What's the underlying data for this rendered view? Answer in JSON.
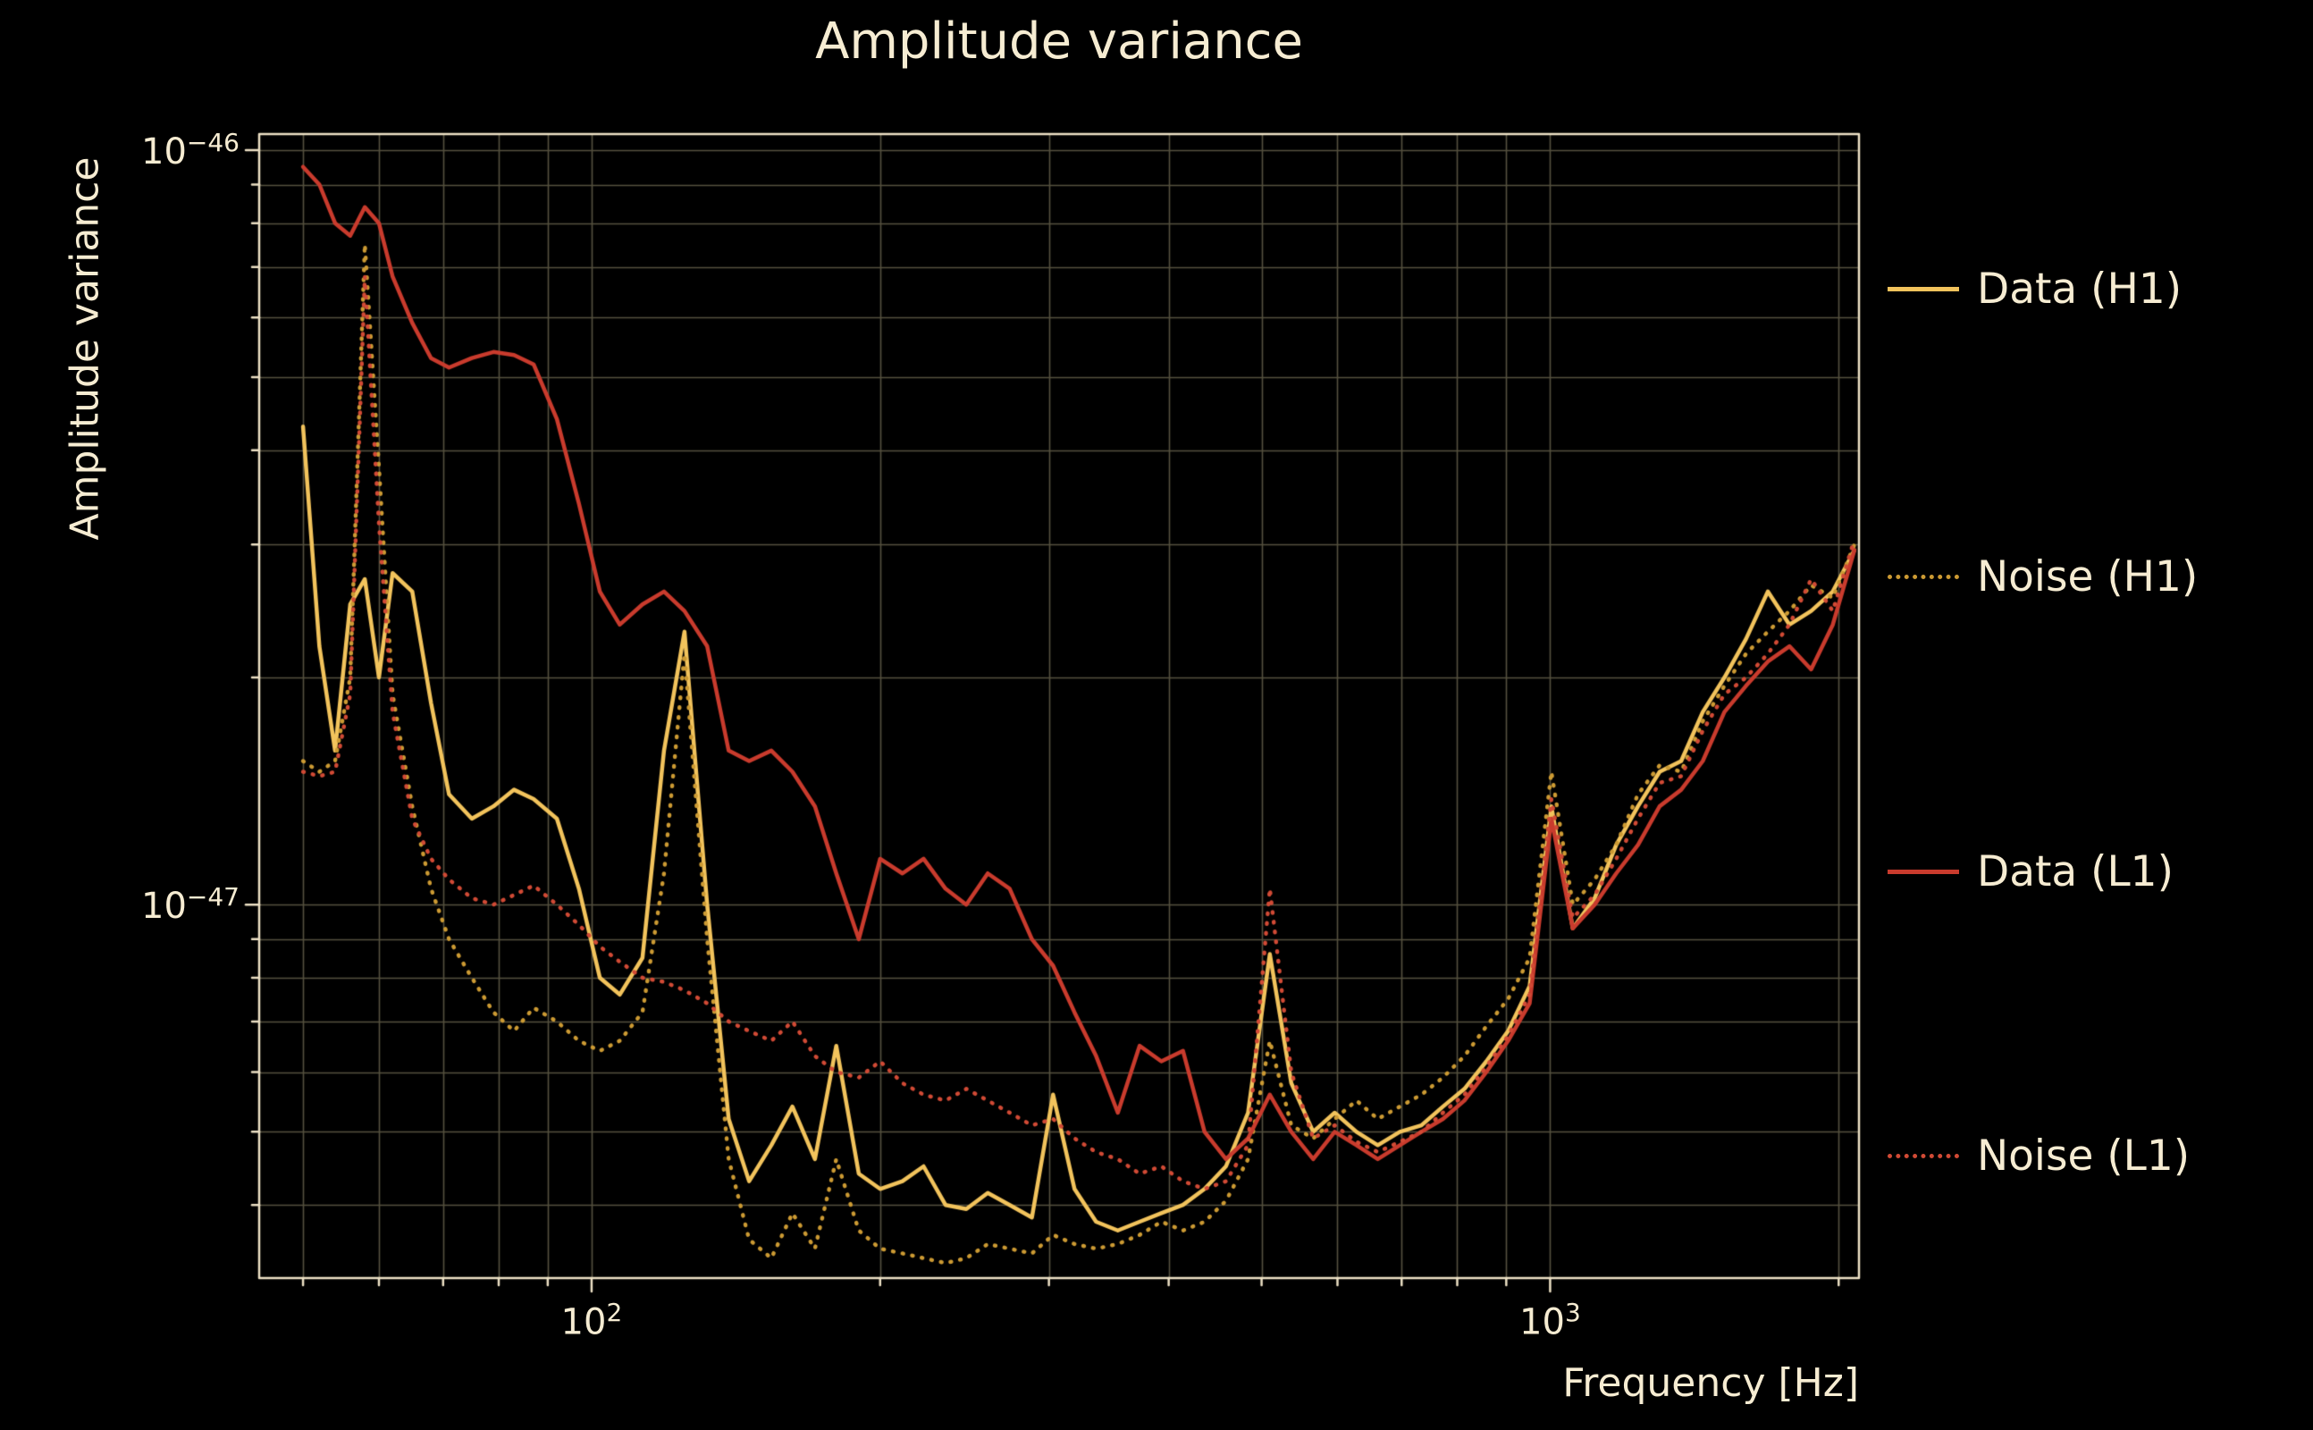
{
  "colors": {
    "background": "#000000",
    "text": "#f6ecd2",
    "grid": "#55513f",
    "axis": "#ece0c4"
  },
  "chart_data": {
    "type": "line",
    "title": "Amplitude variance",
    "xlabel": "Frequency [Hz]",
    "ylabel": "Amplitude variance",
    "xscale": "log",
    "yscale": "log",
    "grid": true,
    "legend_position": "right-outside",
    "xlim": [
      45,
      2100
    ],
    "ylim": [
      3.2e-48,
      1.05e-46
    ],
    "y_unit_scale": 1e-48,
    "x": [
      50,
      52,
      54,
      56,
      58,
      60,
      62,
      65,
      68,
      71,
      75,
      79,
      83,
      87,
      92,
      97,
      102,
      107,
      113,
      119,
      125,
      132,
      139,
      146,
      154,
      162,
      171,
      180,
      190,
      200,
      211,
      222,
      234,
      246,
      259,
      273,
      288,
      303,
      319,
      336,
      354,
      373,
      393,
      414,
      436,
      459,
      484,
      510,
      537,
      566,
      596,
      628,
      661,
      697,
      734,
      773,
      814,
      858,
      904,
      952,
      1003,
      1056,
      1113,
      1172,
      1235,
      1301,
      1370,
      1443,
      1520,
      1601,
      1687,
      1777,
      1872,
      1972,
      2077
    ],
    "series": [
      {
        "name": "Data (H1)",
        "color": "#f2c35c",
        "dash": "solid",
        "values": [
          43,
          22,
          16,
          25,
          27,
          20,
          27.5,
          26,
          18.5,
          14,
          13,
          13.5,
          14.2,
          13.8,
          13,
          10.5,
          8.0,
          7.6,
          8.5,
          16,
          23,
          10,
          5.2,
          4.3,
          4.8,
          5.4,
          4.6,
          6.5,
          4.4,
          4.2,
          4.3,
          4.5,
          4.0,
          3.95,
          4.15,
          4.0,
          3.85,
          5.6,
          4.2,
          3.8,
          3.7,
          3.8,
          3.9,
          4.0,
          4.2,
          4.5,
          5.3,
          8.6,
          5.8,
          5.0,
          5.3,
          5.0,
          4.8,
          5.0,
          5.1,
          5.4,
          5.7,
          6.2,
          6.8,
          7.8,
          13.5,
          9.3,
          10.2,
          12,
          13.5,
          15,
          15.5,
          18,
          20,
          22.5,
          26,
          23.5,
          24.5,
          26,
          29.5
        ]
      },
      {
        "name": "Noise (H1)",
        "color": "#cc9a33",
        "dash": "dotted",
        "values": [
          15.5,
          15,
          15.5,
          20,
          75,
          38,
          19,
          13.5,
          10.5,
          9,
          8,
          7.2,
          6.8,
          7.3,
          7,
          6.6,
          6.4,
          6.6,
          7.2,
          11,
          21.5,
          9,
          4.6,
          3.6,
          3.4,
          3.9,
          3.5,
          4.6,
          3.7,
          3.5,
          3.45,
          3.4,
          3.35,
          3.4,
          3.55,
          3.5,
          3.45,
          3.65,
          3.55,
          3.5,
          3.55,
          3.65,
          3.8,
          3.7,
          3.8,
          4.05,
          4.6,
          6.6,
          5.1,
          4.9,
          5.2,
          5.5,
          5.2,
          5.4,
          5.6,
          5.9,
          6.3,
          6.9,
          7.5,
          8.5,
          15,
          10,
          10.8,
          12,
          14,
          15.3,
          15,
          17.5,
          19.5,
          21.5,
          23,
          24.5,
          26.5,
          25.5,
          30
        ]
      },
      {
        "name": "Data (L1)",
        "color": "#c93b2d",
        "dash": "solid",
        "values": [
          95,
          90,
          80,
          77,
          84,
          80,
          68,
          59,
          53,
          51.5,
          53,
          54,
          53.5,
          52,
          44,
          34,
          26,
          23.5,
          25,
          26,
          24.5,
          22,
          16,
          15.5,
          16,
          15,
          13.5,
          11,
          9,
          11.5,
          11,
          11.5,
          10.5,
          10,
          11,
          10.5,
          9,
          8.3,
          7.2,
          6.3,
          5.3,
          6.5,
          6.2,
          6.4,
          5,
          4.6,
          4.9,
          5.6,
          5,
          4.6,
          5,
          4.8,
          4.6,
          4.8,
          5,
          5.2,
          5.5,
          6,
          6.6,
          7.4,
          13,
          9.3,
          10,
          11,
          12,
          13.5,
          14.2,
          15.5,
          18,
          19.5,
          21,
          22,
          20.5,
          23.5,
          29.5
        ]
      },
      {
        "name": "Noise (L1)",
        "color": "#d14a35",
        "dash": "dotted",
        "values": [
          15,
          14.8,
          15,
          19,
          68,
          32,
          18,
          13,
          11.5,
          10.8,
          10.2,
          10,
          10.3,
          10.6,
          10,
          9.4,
          8.8,
          8.4,
          8,
          7.9,
          7.7,
          7.4,
          7,
          6.8,
          6.6,
          7,
          6.3,
          6,
          5.9,
          6.2,
          5.8,
          5.6,
          5.5,
          5.7,
          5.5,
          5.3,
          5.1,
          5.2,
          4.9,
          4.7,
          4.6,
          4.4,
          4.5,
          4.3,
          4.2,
          4.3,
          4.8,
          10.5,
          6,
          4.9,
          5.1,
          4.85,
          4.7,
          4.85,
          5,
          5.3,
          5.6,
          6.1,
          6.7,
          7.6,
          13.8,
          9.6,
          10.3,
          11.5,
          13,
          14.5,
          14.8,
          17,
          19,
          20,
          21.5,
          23.5,
          27,
          24.5,
          30.5
        ]
      }
    ],
    "xticks": [
      {
        "base": "10",
        "exp": "2",
        "value": 100
      },
      {
        "base": "10",
        "exp": "3",
        "value": 1000
      }
    ],
    "yticks": [
      {
        "base": "10",
        "exp": "−46",
        "value": 1e-46
      },
      {
        "base": "10",
        "exp": "−47",
        "value": 1e-47
      }
    ]
  }
}
